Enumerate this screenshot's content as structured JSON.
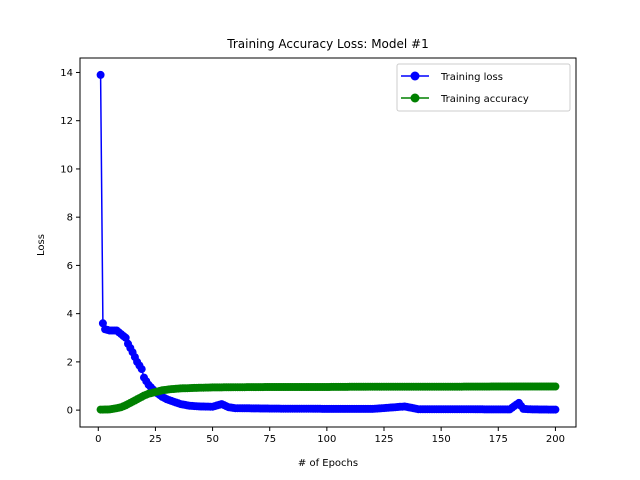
{
  "chart_data": {
    "type": "line",
    "title": "Training Accuracy Loss: Model #1",
    "xlabel": "# of Epochs",
    "ylabel": "Loss",
    "xlim": [
      -8,
      209
    ],
    "ylim": [
      -0.7,
      14.6
    ],
    "xticks": [
      0,
      25,
      50,
      75,
      100,
      125,
      150,
      175,
      200
    ],
    "yticks": [
      0,
      2,
      4,
      6,
      8,
      10,
      12,
      14
    ],
    "grid": false,
    "legend_position": "upper right",
    "series": [
      {
        "name": "Training loss",
        "color": "#0000ff",
        "marker": "circle",
        "keypoints": [
          [
            1,
            13.9
          ],
          [
            2,
            3.6
          ],
          [
            3,
            3.35
          ],
          [
            5,
            3.3
          ],
          [
            8,
            3.3
          ],
          [
            10,
            3.15
          ],
          [
            12,
            3.0
          ],
          [
            13,
            2.75
          ],
          [
            15,
            2.4
          ],
          [
            17,
            2.0
          ],
          [
            19,
            1.7
          ],
          [
            20,
            1.35
          ],
          [
            22,
            1.05
          ],
          [
            25,
            0.75
          ],
          [
            28,
            0.55
          ],
          [
            30,
            0.45
          ],
          [
            33,
            0.35
          ],
          [
            36,
            0.25
          ],
          [
            40,
            0.18
          ],
          [
            45,
            0.15
          ],
          [
            50,
            0.14
          ],
          [
            54,
            0.25
          ],
          [
            57,
            0.12
          ],
          [
            60,
            0.08
          ],
          [
            70,
            0.07
          ],
          [
            80,
            0.06
          ],
          [
            90,
            0.06
          ],
          [
            100,
            0.05
          ],
          [
            110,
            0.05
          ],
          [
            120,
            0.05
          ],
          [
            134,
            0.15
          ],
          [
            140,
            0.04
          ],
          [
            150,
            0.04
          ],
          [
            160,
            0.04
          ],
          [
            170,
            0.03
          ],
          [
            180,
            0.03
          ],
          [
            184,
            0.3
          ],
          [
            186,
            0.05
          ],
          [
            190,
            0.03
          ],
          [
            200,
            0.02
          ]
        ]
      },
      {
        "name": "Training accuracy",
        "color": "#008000",
        "marker": "circle",
        "keypoints": [
          [
            1,
            0.02
          ],
          [
            5,
            0.03
          ],
          [
            8,
            0.08
          ],
          [
            10,
            0.12
          ],
          [
            12,
            0.2
          ],
          [
            14,
            0.3
          ],
          [
            16,
            0.4
          ],
          [
            18,
            0.5
          ],
          [
            20,
            0.6
          ],
          [
            22,
            0.68
          ],
          [
            25,
            0.75
          ],
          [
            28,
            0.82
          ],
          [
            32,
            0.87
          ],
          [
            36,
            0.9
          ],
          [
            42,
            0.92
          ],
          [
            50,
            0.94
          ],
          [
            60,
            0.95
          ],
          [
            80,
            0.96
          ],
          [
            100,
            0.96
          ],
          [
            120,
            0.97
          ],
          [
            150,
            0.97
          ],
          [
            180,
            0.98
          ],
          [
            200,
            0.98
          ]
        ]
      }
    ]
  }
}
